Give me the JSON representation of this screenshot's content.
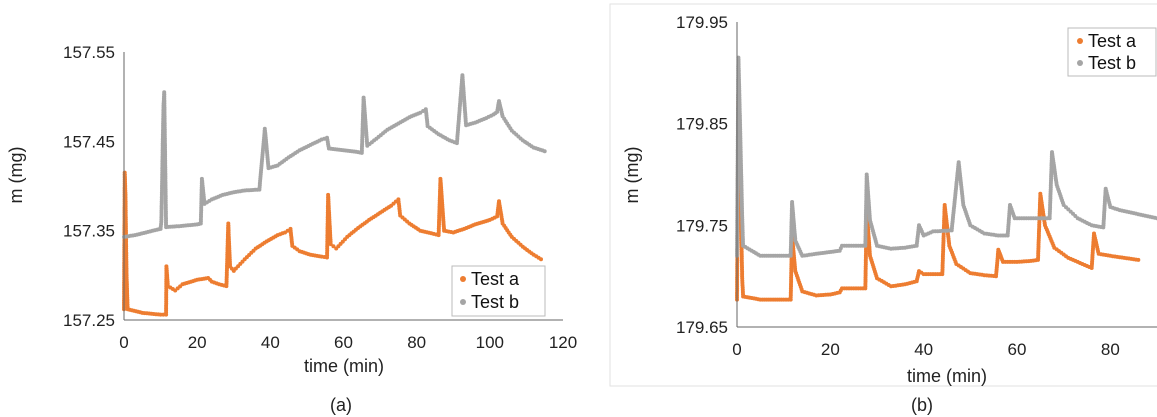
{
  "chart_data": [
    {
      "type": "scatter",
      "panel": "(a)",
      "xlabel": "time (min)",
      "ylabel": "m (mg)",
      "xlim": [
        0,
        120
      ],
      "ylim": [
        157.25,
        157.55
      ],
      "xticks": [
        0,
        20,
        40,
        60,
        80,
        100,
        120
      ],
      "yticks": [
        "157.25",
        "157.35",
        "157.45",
        "157.55"
      ],
      "grid": false,
      "legend_position": "bottom-right",
      "series": [
        {
          "name": "Test a",
          "color": "#ED7D31",
          "points": [
            [
              0,
              157.262
            ],
            [
              0.2,
              157.415
            ],
            [
              0.4,
              157.39
            ],
            [
              0.5,
              157.36
            ],
            [
              0.6,
              157.33
            ],
            [
              0.7,
              157.3
            ],
            [
              0.9,
              157.275
            ],
            [
              1,
              157.262
            ],
            [
              5,
              157.258
            ],
            [
              10,
              157.256
            ],
            [
              11.5,
              157.256
            ],
            [
              11.6,
              157.31
            ],
            [
              12,
              157.288
            ],
            [
              14,
              157.283
            ],
            [
              16,
              157.29
            ],
            [
              20,
              157.295
            ],
            [
              23,
              157.297
            ],
            [
              24,
              157.293
            ],
            [
              26,
              157.29
            ],
            [
              28,
              157.288
            ],
            [
              28.5,
              157.358
            ],
            [
              29,
              157.31
            ],
            [
              30,
              157.305
            ],
            [
              33,
              157.318
            ],
            [
              36,
              157.33
            ],
            [
              39,
              157.338
            ],
            [
              42,
              157.345
            ],
            [
              44,
              157.348
            ],
            [
              45.5,
              157.352
            ],
            [
              46,
              157.333
            ],
            [
              48,
              157.327
            ],
            [
              51,
              157.323
            ],
            [
              54,
              157.321
            ],
            [
              55.5,
              157.32
            ],
            [
              55.8,
              157.39
            ],
            [
              56.5,
              157.335
            ],
            [
              58,
              157.33
            ],
            [
              61,
              157.343
            ],
            [
              64,
              157.353
            ],
            [
              67,
              157.362
            ],
            [
              70,
              157.37
            ],
            [
              73,
              157.378
            ],
            [
              75,
              157.385
            ],
            [
              75.5,
              157.367
            ],
            [
              78,
              157.358
            ],
            [
              81,
              157.35
            ],
            [
              84,
              157.347
            ],
            [
              86,
              157.345
            ],
            [
              86.5,
              157.408
            ],
            [
              87.5,
              157.35
            ],
            [
              90,
              157.348
            ],
            [
              93,
              157.352
            ],
            [
              96,
              157.357
            ],
            [
              100,
              157.362
            ],
            [
              102,
              157.366
            ],
            [
              102.5,
              157.383
            ],
            [
              103.5,
              157.358
            ],
            [
              106,
              157.343
            ],
            [
              109,
              157.332
            ],
            [
              112,
              157.323
            ],
            [
              114,
              157.318
            ]
          ]
        },
        {
          "name": "Test b",
          "color": "#A5A5A5",
          "points": [
            [
              0,
              157.343
            ],
            [
              3,
              157.345
            ],
            [
              6,
              157.348
            ],
            [
              9,
              157.351
            ],
            [
              10,
              157.352
            ],
            [
              10.2,
              157.36
            ],
            [
              10.4,
              157.4
            ],
            [
              10.6,
              157.45
            ],
            [
              10.8,
              157.49
            ],
            [
              11,
              157.505
            ],
            [
              11.5,
              157.354
            ],
            [
              15,
              157.355
            ],
            [
              20,
              157.357
            ],
            [
              21,
              157.358
            ],
            [
              21.3,
              157.408
            ],
            [
              22,
              157.38
            ],
            [
              24,
              157.385
            ],
            [
              27,
              157.39
            ],
            [
              30,
              157.393
            ],
            [
              33,
              157.395
            ],
            [
              37,
              157.396
            ],
            [
              38.5,
              157.464
            ],
            [
              39.5,
              157.42
            ],
            [
              42,
              157.423
            ],
            [
              45,
              157.432
            ],
            [
              48,
              157.44
            ],
            [
              51,
              157.446
            ],
            [
              54,
              157.452
            ],
            [
              55.5,
              157.454
            ],
            [
              56,
              157.442
            ],
            [
              60,
              157.44
            ],
            [
              64,
              157.438
            ],
            [
              65,
              157.437
            ],
            [
              65.5,
              157.499
            ],
            [
              66.5,
              157.445
            ],
            [
              69,
              157.453
            ],
            [
              72,
              157.463
            ],
            [
              75,
              157.47
            ],
            [
              78,
              157.477
            ],
            [
              81,
              157.482
            ],
            [
              82.5,
              157.486
            ],
            [
              83,
              157.467
            ],
            [
              86,
              157.458
            ],
            [
              89,
              157.451
            ],
            [
              91,
              157.448
            ],
            [
              92.5,
              157.524
            ],
            [
              93.5,
              157.468
            ],
            [
              96,
              157.471
            ],
            [
              99,
              157.476
            ],
            [
              101,
              157.48
            ],
            [
              102,
              157.483
            ],
            [
              102.5,
              157.495
            ],
            [
              103.5,
              157.478
            ],
            [
              106,
              157.462
            ],
            [
              109,
              157.451
            ],
            [
              112,
              157.443
            ],
            [
              115,
              157.439
            ]
          ]
        }
      ],
      "caption": "(a)"
    },
    {
      "type": "scatter",
      "panel": "(b)",
      "xlabel": "time (min)",
      "ylabel": "m (mg)",
      "xlim": [
        0,
        90
      ],
      "ylim": [
        179.65,
        179.95
      ],
      "xticks": [
        0,
        20,
        40,
        60,
        80
      ],
      "yticks": [
        "179.65",
        "179.75",
        "179.85",
        "179.95"
      ],
      "grid": false,
      "legend_position": "top-right",
      "series": [
        {
          "name": "Test a",
          "color": "#ED7D31",
          "points": [
            [
              0,
              179.677
            ],
            [
              0.3,
              179.88
            ],
            [
              0.5,
              179.85
            ],
            [
              0.7,
              179.8
            ],
            [
              0.9,
              179.75
            ],
            [
              1.1,
              179.7
            ],
            [
              1.3,
              179.68
            ],
            [
              5,
              179.677
            ],
            [
              10,
              179.677
            ],
            [
              11.5,
              179.677
            ],
            [
              11.8,
              179.74
            ],
            [
              12.5,
              179.705
            ],
            [
              14,
              179.685
            ],
            [
              17,
              179.681
            ],
            [
              20,
              179.682
            ],
            [
              22,
              179.684
            ],
            [
              22.5,
              179.688
            ],
            [
              25,
              179.688
            ],
            [
              27.5,
              179.688
            ],
            [
              27.8,
              179.765
            ],
            [
              28.5,
              179.72
            ],
            [
              30,
              179.698
            ],
            [
              33,
              179.69
            ],
            [
              36,
              179.692
            ],
            [
              38.5,
              179.695
            ],
            [
              39,
              179.705
            ],
            [
              40,
              179.702
            ],
            [
              42,
              179.702
            ],
            [
              44,
              179.702
            ],
            [
              44.5,
              179.77
            ],
            [
              45.5,
              179.73
            ],
            [
              47,
              179.712
            ],
            [
              50,
              179.703
            ],
            [
              53,
              179.701
            ],
            [
              55.5,
              179.7
            ],
            [
              56,
              179.726
            ],
            [
              57,
              179.714
            ],
            [
              60,
              179.714
            ],
            [
              63,
              179.715
            ],
            [
              64.5,
              179.716
            ],
            [
              65,
              179.781
            ],
            [
              66,
              179.75
            ],
            [
              68,
              179.728
            ],
            [
              71,
              179.718
            ],
            [
              74,
              179.712
            ],
            [
              76,
              179.708
            ],
            [
              76.5,
              179.742
            ],
            [
              77.5,
              179.722
            ],
            [
              80,
              179.72
            ],
            [
              83,
              179.718
            ],
            [
              86,
              179.716
            ]
          ]
        },
        {
          "name": "Test b",
          "color": "#A5A5A5",
          "points": [
            [
              0,
              179.72
            ],
            [
              0.3,
              179.915
            ],
            [
              0.5,
              179.88
            ],
            [
              0.7,
              179.84
            ],
            [
              0.9,
              179.8
            ],
            [
              1.1,
              179.76
            ],
            [
              1.3,
              179.73
            ],
            [
              5,
              179.72
            ],
            [
              10,
              179.72
            ],
            [
              11.5,
              179.72
            ],
            [
              11.8,
              179.773
            ],
            [
              12.5,
              179.735
            ],
            [
              14,
              179.72
            ],
            [
              17,
              179.722
            ],
            [
              22,
              179.725
            ],
            [
              22.5,
              179.73
            ],
            [
              25,
              179.73
            ],
            [
              27.5,
              179.73
            ],
            [
              27.8,
              179.8
            ],
            [
              28.5,
              179.755
            ],
            [
              30,
              179.73
            ],
            [
              33,
              179.727
            ],
            [
              36,
              179.728
            ],
            [
              38.5,
              179.73
            ],
            [
              39,
              179.75
            ],
            [
              40,
              179.74
            ],
            [
              42,
              179.744
            ],
            [
              46,
              179.745
            ],
            [
              47.5,
              179.812
            ],
            [
              48.5,
              179.77
            ],
            [
              50,
              179.75
            ],
            [
              53,
              179.742
            ],
            [
              56,
              179.74
            ],
            [
              58,
              179.74
            ],
            [
              58.5,
              179.77
            ],
            [
              59.5,
              179.757
            ],
            [
              62,
              179.757
            ],
            [
              65,
              179.757
            ],
            [
              67,
              179.757
            ],
            [
              67.5,
              179.822
            ],
            [
              68.5,
              179.79
            ],
            [
              70,
              179.77
            ],
            [
              73,
              179.757
            ],
            [
              76,
              179.75
            ],
            [
              78.5,
              179.748
            ],
            [
              79,
              179.786
            ],
            [
              80,
              179.768
            ],
            [
              82,
              179.765
            ],
            [
              86,
              179.761
            ],
            [
              90,
              179.757
            ]
          ]
        }
      ],
      "caption": "(b)"
    }
  ]
}
